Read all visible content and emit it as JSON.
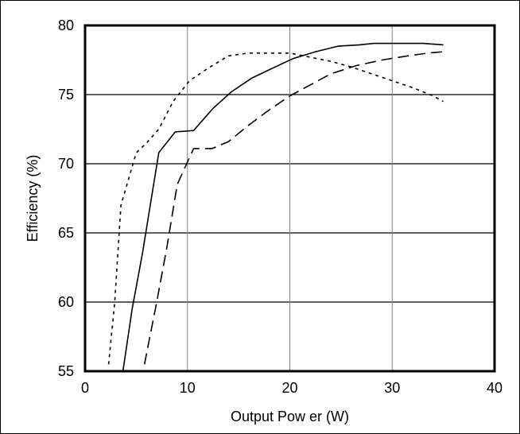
{
  "chart_data": {
    "type": "line",
    "title": "",
    "xlabel": "Output Pow er (W)",
    "ylabel": "Efficiency (%)",
    "xlim": [
      0,
      40
    ],
    "ylim": [
      55,
      80
    ],
    "x_ticks": [
      "0",
      "10",
      "20",
      "30",
      "40"
    ],
    "y_ticks": [
      "55",
      "60",
      "65",
      "70",
      "75",
      "80"
    ],
    "grid": true,
    "legend": "none",
    "series": [
      {
        "style": "solid",
        "color": "#000000",
        "x": [
          3.7,
          4.6,
          5.6,
          7.2,
          8.8,
          10.6,
          12.5,
          14.3,
          16.3,
          18.3,
          20.3,
          22.5,
          24.7,
          26.8,
          28.2,
          31.0,
          33.0,
          35.0
        ],
        "y": [
          55.0,
          59.5,
          63.5,
          70.8,
          72.3,
          72.4,
          74.0,
          75.2,
          76.2,
          76.9,
          77.6,
          78.1,
          78.5,
          78.6,
          78.7,
          78.7,
          78.7,
          78.6
        ]
      },
      {
        "style": "dashed",
        "color": "#000000",
        "x": [
          5.8,
          7.0,
          8.0,
          9.0,
          10.6,
          12.4,
          14.0,
          16.0,
          18.0,
          20.0,
          22.0,
          24.0,
          26.5,
          29.0,
          31.5,
          33.5,
          35.0
        ],
        "y": [
          55.5,
          60.0,
          64.0,
          68.5,
          71.1,
          71.1,
          71.6,
          72.8,
          73.9,
          74.9,
          75.7,
          76.5,
          77.1,
          77.5,
          77.8,
          78.0,
          78.1
        ]
      },
      {
        "style": "dotted",
        "color": "#000000",
        "x": [
          2.3,
          2.9,
          3.5,
          5.0,
          6.0,
          7.2,
          8.6,
          10.2,
          12.0,
          14.0,
          16.0,
          18.0,
          20.0,
          22.0,
          24.0,
          26.0,
          28.0,
          30.0,
          32.0,
          34.0,
          35.0
        ],
        "y": [
          55.5,
          60.0,
          67.0,
          70.8,
          71.5,
          72.5,
          74.5,
          76.0,
          76.9,
          77.8,
          78.0,
          78.0,
          78.0,
          77.7,
          77.4,
          77.0,
          76.5,
          76.0,
          75.5,
          74.9,
          74.5
        ]
      }
    ]
  }
}
